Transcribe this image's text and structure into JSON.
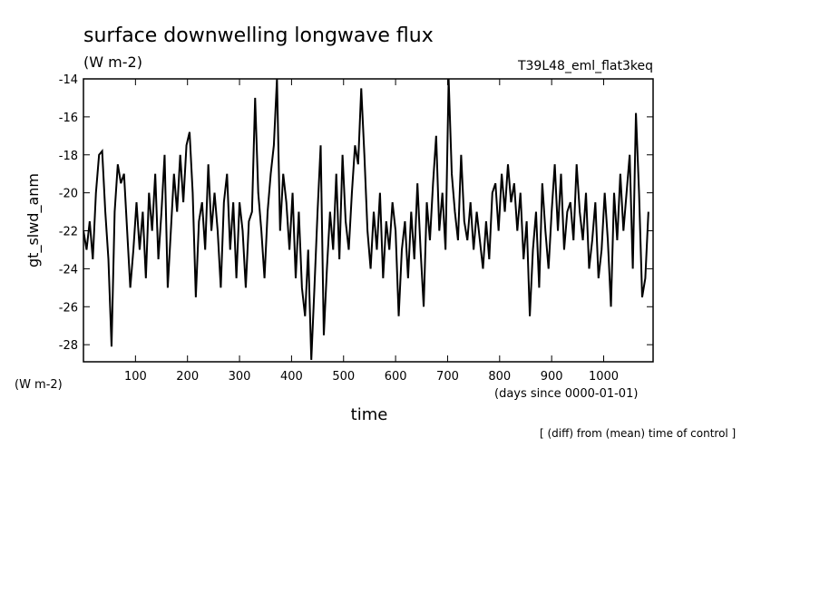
{
  "chart_data": {
    "type": "line",
    "title": "surface downwelling longwave flux",
    "subtitle": "(W m-2)",
    "annotation": "T39L48_eml_flat3keq",
    "ylabel": "gt_slwd_anm",
    "yunit": "(W m-2)",
    "xunit": "(days since 0000-01-01)",
    "xlabel": "time",
    "note": "[ (diff) from (mean) time of control ]",
    "xlim": [
      0,
      1095
    ],
    "ylim": [
      -28.9,
      -14
    ],
    "xticks": [
      100,
      200,
      300,
      400,
      500,
      600,
      700,
      800,
      900,
      1000
    ],
    "yticks": [
      -14,
      -16,
      -18,
      -20,
      -22,
      -24,
      -26,
      -28
    ],
    "x": [
      0,
      6,
      12,
      18,
      24,
      30,
      36,
      42,
      48,
      54,
      60,
      66,
      72,
      78,
      84,
      90,
      96,
      102,
      108,
      114,
      120,
      126,
      132,
      138,
      144,
      150,
      156,
      162,
      168,
      174,
      180,
      186,
      192,
      198,
      204,
      210,
      216,
      222,
      228,
      234,
      240,
      246,
      252,
      258,
      264,
      270,
      276,
      282,
      288,
      294,
      300,
      306,
      312,
      318,
      324,
      330,
      336,
      342,
      348,
      354,
      360,
      366,
      372,
      378,
      384,
      390,
      396,
      402,
      408,
      414,
      420,
      426,
      432,
      438,
      444,
      450,
      456,
      462,
      468,
      474,
      480,
      486,
      492,
      498,
      504,
      510,
      516,
      522,
      528,
      534,
      540,
      546,
      552,
      558,
      564,
      570,
      576,
      582,
      588,
      594,
      600,
      606,
      612,
      618,
      624,
      630,
      636,
      642,
      648,
      654,
      660,
      666,
      672,
      678,
      684,
      690,
      696,
      702,
      708,
      714,
      720,
      726,
      732,
      738,
      744,
      750,
      756,
      762,
      768,
      774,
      780,
      786,
      792,
      798,
      804,
      810,
      816,
      822,
      828,
      834,
      840,
      846,
      852,
      858,
      864,
      870,
      876,
      882,
      888,
      894,
      900,
      906,
      912,
      918,
      924,
      930,
      936,
      942,
      948,
      954,
      960,
      966,
      972,
      978,
      984,
      990,
      996,
      1002,
      1008,
      1014,
      1020,
      1026,
      1032,
      1038,
      1044,
      1050,
      1056,
      1062,
      1068,
      1074,
      1080,
      1086
    ],
    "series": [
      {
        "color": "#000000",
        "values": [
          -22,
          -23,
          -21.5,
          -23.5,
          -20,
          -18,
          -17.8,
          -21,
          -23.5,
          -28.1,
          -21,
          -18.5,
          -19.5,
          -19,
          -22,
          -25,
          -23,
          -20.5,
          -23,
          -21,
          -24.5,
          -20,
          -22,
          -19,
          -23.5,
          -21,
          -18,
          -25,
          -22,
          -19,
          -21,
          -18,
          -20.5,
          -17.5,
          -16.8,
          -20,
          -25.5,
          -21.5,
          -20.5,
          -23,
          -18.5,
          -22,
          -20,
          -22,
          -25,
          -20.5,
          -19,
          -23,
          -20.5,
          -24.5,
          -20.5,
          -22,
          -25,
          -21.5,
          -21,
          -15,
          -20,
          -22,
          -24.5,
          -21,
          -19,
          -17.5,
          -14,
          -22,
          -19,
          -20.5,
          -23,
          -20,
          -24.5,
          -21,
          -25,
          -26.5,
          -23,
          -28.8,
          -25,
          -21,
          -17.5,
          -27.5,
          -24,
          -21,
          -23,
          -19,
          -23.5,
          -18,
          -21.5,
          -23,
          -20,
          -17.5,
          -18.5,
          -14.5,
          -18,
          -22,
          -24,
          -21,
          -23,
          -20,
          -24.5,
          -21.5,
          -23,
          -20.5,
          -22,
          -26.5,
          -23,
          -21.5,
          -24.5,
          -21,
          -23.5,
          -19.5,
          -23,
          -26,
          -20.5,
          -22.5,
          -19.5,
          -17,
          -22,
          -20,
          -23,
          -14,
          -19,
          -21,
          -22.5,
          -18,
          -21.5,
          -22.5,
          -20.5,
          -23,
          -21,
          -22.5,
          -24,
          -21.5,
          -23.5,
          -20,
          -19.5,
          -22,
          -19,
          -21,
          -18.5,
          -20.5,
          -19.5,
          -22,
          -20,
          -23.5,
          -21.5,
          -26.5,
          -23,
          -21,
          -25,
          -19.5,
          -22,
          -24,
          -21,
          -18.5,
          -22,
          -19,
          -23,
          -21,
          -20.5,
          -22.5,
          -18.5,
          -21,
          -22.5,
          -20,
          -24,
          -22.5,
          -20.5,
          -24.5,
          -23,
          -20,
          -22.5,
          -26,
          -20,
          -22.5,
          -19,
          -22,
          -20,
          -18,
          -24,
          -15.8,
          -20,
          -25.5,
          -24.5,
          -21
        ]
      }
    ]
  }
}
